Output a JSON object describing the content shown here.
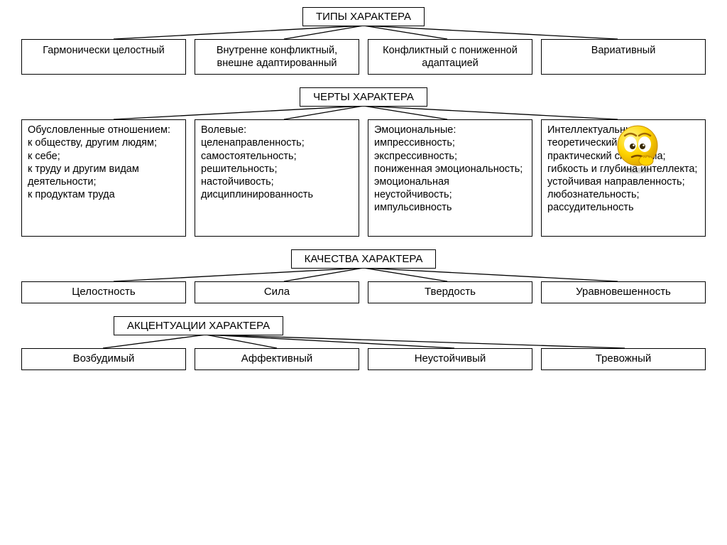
{
  "diagram": {
    "background_color": "#ffffff",
    "border_color": "#000000",
    "line_color": "#000000",
    "font_family": "Arial",
    "title_fontsize": 15,
    "box_fontsize": 14.5,
    "sections": [
      {
        "title": "ТИПЫ ХАРАКТЕРА",
        "items": [
          "Гармонически целостный",
          "Внутренне конфликтный, внешне адапти­рованный",
          "Конфликтный с пониженной адаптацией",
          "Вариативный"
        ]
      },
      {
        "title": "ЧЕРТЫ ХАРАКТЕРА",
        "items": [
          "Обусловленные отношением:\nк обществу, другим людям;\nк себе;\nк труду и другим видам деятель­ности;\nк продуктам труда",
          "Волевые:\nцеленаправлен­ность;\nсамостоятель­ность;\nрешительность;\nнастойчивость;\nдисциплиниро­ванность",
          "Эмоциональные:\nимпрессивность;\nэкспрессивность;\nпониженная эмоциональность;\nэмоциональная неустойчивость;\nимпульсивность",
          "Интеллектуаль­ные:\nтеоретический или практический склад ума;\nгибкость и глубина интеллекта;\nустойчивая направленность;\nлюбознательность;\nрассудительность"
        ]
      },
      {
        "title": "КАЧЕСТВА ХАРАКТЕРА",
        "items": [
          "Целостность",
          "Сила",
          "Твердость",
          "Уравновешенность"
        ]
      },
      {
        "title": "АКЦЕНТУАЦИИ ХАРАКТЕРА",
        "items": [
          "Возбудимый",
          "Аффективный",
          "Неустойчивый",
          "Тревожный"
        ]
      }
    ],
    "emoji": {
      "face_fill": "#ffd400",
      "face_shadow": "#e0a800",
      "eye_white": "#ffffff",
      "eye_pupil": "#3a2a00",
      "hand_fill": "#ffd400",
      "size": 70
    }
  }
}
